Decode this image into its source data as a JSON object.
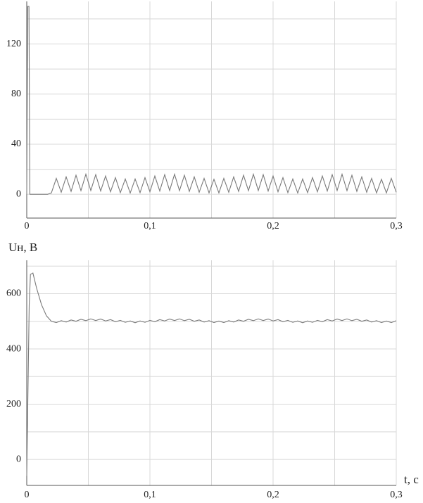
{
  "chart_data": [
    {
      "type": "line",
      "x": [
        0,
        0.0008,
        0.0018,
        0.0025,
        0.017,
        0.02,
        0.024,
        0.028,
        0.032,
        0.036,
        0.04,
        0.044,
        0.048,
        0.052,
        0.056,
        0.06,
        0.064,
        0.068,
        0.072,
        0.076,
        0.08,
        0.084,
        0.088,
        0.092,
        0.096,
        0.1,
        0.104,
        0.108,
        0.112,
        0.116,
        0.12,
        0.124,
        0.128,
        0.132,
        0.136,
        0.14,
        0.144,
        0.148,
        0.152,
        0.156,
        0.16,
        0.164,
        0.168,
        0.172,
        0.176,
        0.18,
        0.184,
        0.188,
        0.192,
        0.196,
        0.2,
        0.204,
        0.208,
        0.212,
        0.216,
        0.22,
        0.224,
        0.228,
        0.232,
        0.236,
        0.24,
        0.244,
        0.248,
        0.252,
        0.256,
        0.26,
        0.264,
        0.268,
        0.272,
        0.276,
        0.28,
        0.284,
        0.288,
        0.292,
        0.296,
        0.3
      ],
      "series": [
        {
          "color": "#7a7a7a",
          "values": [
            0,
            150,
            150,
            0,
            0,
            1.1,
            12.7,
            1.6,
            13.9,
            2.3,
            15.2,
            2.9,
            16.0,
            3.0,
            15.7,
            2.6,
            14.6,
            2.0,
            13.3,
            1.3,
            12.2,
            1.0,
            12.2,
            1.3,
            13.3,
            2.0,
            14.6,
            2.6,
            15.7,
            3.0,
            16.0,
            2.9,
            15.2,
            2.3,
            13.9,
            1.6,
            12.7,
            1.1,
            12.0,
            1.1,
            12.7,
            1.6,
            13.9,
            2.3,
            15.2,
            2.9,
            16.0,
            3.0,
            15.7,
            2.6,
            14.6,
            2.0,
            13.3,
            1.3,
            12.2,
            1.0,
            12.2,
            1.3,
            13.3,
            2.0,
            14.6,
            2.6,
            15.7,
            3.0,
            16.0,
            2.9,
            15.2,
            2.3,
            13.9,
            1.6,
            12.7,
            1.1,
            12.0,
            1.1,
            12.7,
            1.6
          ]
        }
      ],
      "xlim": [
        0,
        0.3
      ],
      "ylim": [
        -19,
        154
      ],
      "xticks": [
        0,
        {
          "value": 0.1,
          "label": "0,1"
        },
        {
          "value": 0.2,
          "label": "0,2"
        },
        {
          "value": 0.3,
          "label": "0,3"
        }
      ],
      "yticks": [
        0,
        40,
        80,
        120
      ],
      "grid": true,
      "xminor": [
        0.05,
        0.15,
        0.25
      ],
      "yminor": [
        20,
        60,
        100,
        140
      ]
    },
    {
      "type": "line",
      "ylabel": "Uн, В",
      "xlabel": "t, с",
      "x": [
        0,
        0.002,
        0.003,
        0.005,
        0.008,
        0.012,
        0.016,
        0.02,
        0.024,
        0.028,
        0.032,
        0.036,
        0.04,
        0.044,
        0.048,
        0.052,
        0.056,
        0.06,
        0.064,
        0.068,
        0.072,
        0.076,
        0.08,
        0.084,
        0.088,
        0.092,
        0.096,
        0.1,
        0.104,
        0.108,
        0.112,
        0.116,
        0.12,
        0.124,
        0.128,
        0.132,
        0.136,
        0.14,
        0.144,
        0.148,
        0.152,
        0.156,
        0.16,
        0.164,
        0.168,
        0.172,
        0.176,
        0.18,
        0.184,
        0.188,
        0.192,
        0.196,
        0.2,
        0.204,
        0.208,
        0.212,
        0.216,
        0.22,
        0.224,
        0.228,
        0.232,
        0.236,
        0.24,
        0.244,
        0.248,
        0.252,
        0.256,
        0.26,
        0.264,
        0.268,
        0.272,
        0.276,
        0.28,
        0.284,
        0.288,
        0.292,
        0.296,
        0.3
      ],
      "series": [
        {
          "color": "#7a7a7a",
          "values": [
            -60,
            560,
            670,
            675,
            620,
            560,
            520,
            500,
            495.4,
            502.3,
            497.5,
            504.8,
            500.2,
            507.4,
            502.4,
            508.9,
            502.9,
            508.4,
            501.4,
            506.2,
            498.8,
            503.5,
            496.3,
            501.4,
            495.0,
            501.4,
            496.3,
            503.5,
            498.8,
            506.2,
            501.4,
            508.4,
            502.9,
            508.9,
            502.4,
            507.4,
            500.2,
            504.8,
            497.5,
            502.3,
            495.4,
            501.0,
            495.4,
            502.3,
            497.5,
            504.8,
            500.2,
            507.4,
            502.4,
            508.9,
            502.9,
            508.4,
            501.4,
            506.2,
            498.8,
            503.5,
            496.3,
            501.4,
            495.0,
            501.4,
            496.3,
            503.5,
            498.8,
            506.2,
            501.4,
            508.4,
            502.9,
            508.9,
            502.4,
            507.4,
            500.2,
            504.8,
            497.5,
            502.3,
            495.4,
            501.0,
            495.4,
            502.3
          ]
        }
      ],
      "xlim": [
        0,
        0.3
      ],
      "ylim": [
        -94,
        721
      ],
      "xticks": [
        0,
        {
          "value": 0.1,
          "label": "0,1"
        },
        {
          "value": 0.2,
          "label": "0,2"
        },
        {
          "value": 0.3,
          "label": "0,3"
        }
      ],
      "yticks": [
        0,
        200,
        400,
        600
      ],
      "grid": true,
      "xminor": [
        0.05,
        0.15,
        0.25
      ],
      "yminor": [
        100,
        300,
        500,
        700
      ]
    }
  ]
}
